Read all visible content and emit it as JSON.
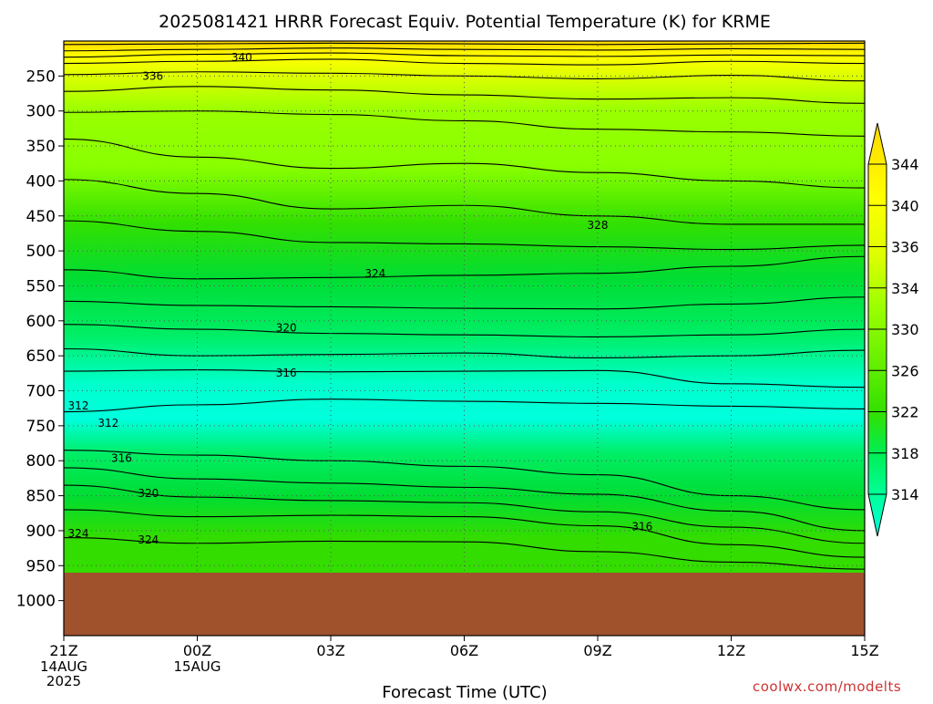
{
  "chart_data": {
    "type": "contour",
    "title": "2025081421 HRRR Forecast Equiv. Potential Temperature (K) for KRME",
    "xlabel": "Forecast Time (UTC)",
    "ylabel": "",
    "x_ticks": [
      {
        "label": "21Z",
        "sub": [
          "14AUG",
          "2025"
        ]
      },
      {
        "label": "00Z",
        "sub": [
          "15AUG"
        ]
      },
      {
        "label": "03Z",
        "sub": []
      },
      {
        "label": "06Z",
        "sub": []
      },
      {
        "label": "09Z",
        "sub": []
      },
      {
        "label": "12Z",
        "sub": []
      },
      {
        "label": "15Z",
        "sub": []
      }
    ],
    "y_ticks": [
      250,
      300,
      350,
      400,
      450,
      500,
      550,
      600,
      650,
      700,
      750,
      800,
      850,
      900,
      950,
      1000
    ],
    "ylim": [
      200,
      1050
    ],
    "surface_pressure": 960,
    "levels": [
      312,
      314,
      316,
      318,
      320,
      322,
      324,
      326,
      328,
      330,
      332,
      334,
      336,
      338,
      340,
      342,
      344
    ],
    "contours": [
      {
        "level": 344,
        "p": [
          205,
          204,
          203,
          204,
          205,
          204,
          203
        ]
      },
      {
        "level": 342,
        "p": [
          214,
          212,
          210,
          212,
          213,
          211,
          212
        ]
      },
      {
        "level": 340,
        "p": [
          223,
          219,
          217,
          221,
          222,
          220,
          221
        ]
      },
      {
        "level": 338,
        "p": [
          232,
          229,
          226,
          232,
          234,
          229,
          232
        ]
      },
      {
        "level": 336,
        "p": [
          248,
          244,
          246,
          250,
          254,
          249,
          257
        ]
      },
      {
        "level": 334,
        "p": [
          272,
          265,
          270,
          277,
          283,
          281,
          289
        ]
      },
      {
        "level": 332,
        "p": [
          302,
          300,
          305,
          314,
          326,
          330,
          336
        ]
      },
      {
        "level": 330,
        "p": [
          340,
          366,
          382,
          375,
          388,
          400,
          410
        ]
      },
      {
        "level": 328,
        "p": [
          398,
          418,
          440,
          435,
          450,
          462,
          462
        ]
      },
      {
        "level": 326,
        "p": [
          457,
          472,
          488,
          490,
          494,
          498,
          492
        ]
      },
      {
        "level": 324,
        "p": [
          527,
          540,
          538,
          535,
          532,
          522,
          508
        ]
      },
      {
        "level": 322,
        "p": [
          572,
          578,
          580,
          582,
          583,
          576,
          566
        ]
      },
      {
        "level": 320,
        "p": [
          605,
          612,
          618,
          620,
          623,
          620,
          612
        ]
      },
      {
        "level": 318,
        "p": [
          640,
          650,
          648,
          646,
          653,
          650,
          642
        ]
      },
      {
        "level": 316,
        "p": [
          672,
          670,
          673,
          672,
          671,
          690,
          695
        ]
      },
      {
        "level": 314,
        "p": [
          730,
          720,
          712,
          715,
          718,
          722,
          726
        ]
      },
      {
        "level": 316,
        "p": [
          785,
          792,
          800,
          808,
          820,
          850,
          870
        ]
      },
      {
        "level": 318,
        "p": [
          810,
          826,
          832,
          838,
          848,
          872,
          900
        ]
      },
      {
        "level": 320,
        "p": [
          835,
          852,
          857,
          860,
          873,
          895,
          918
        ]
      },
      {
        "level": 322,
        "p": [
          870,
          880,
          878,
          880,
          893,
          920,
          938
        ]
      },
      {
        "level": 324,
        "p": [
          910,
          918,
          915,
          916,
          930,
          945,
          955
        ]
      }
    ],
    "contour_labels": [
      {
        "text": "340",
        "x": 4.0,
        "p": 222
      },
      {
        "text": "336",
        "x": 2.0,
        "p": 249
      },
      {
        "text": "328",
        "x": 12.0,
        "p": 462
      },
      {
        "text": "324",
        "x": 7.0,
        "p": 531
      },
      {
        "text": "320",
        "x": 5.0,
        "p": 609
      },
      {
        "text": "316",
        "x": 5.0,
        "p": 673
      },
      {
        "text": "312",
        "x": 0.0,
        "p": 720
      },
      {
        "text": "312",
        "x": 1.0,
        "p": 745
      },
      {
        "text": "316",
        "x": 1.3,
        "p": 795
      },
      {
        "text": "320",
        "x": 1.9,
        "p": 845
      },
      {
        "text": "324",
        "x": 0.0,
        "p": 903
      },
      {
        "text": "324",
        "x": 1.9,
        "p": 912
      },
      {
        "text": "316",
        "x": 13.0,
        "p": 893
      }
    ],
    "colorbar": {
      "labels": [
        344,
        340,
        336,
        334,
        330,
        326,
        322,
        318,
        314
      ],
      "colors": [
        "#ffd700",
        "#ffff00",
        "#ddff00",
        "#99ff00",
        "#66f000",
        "#33e000",
        "#00ee55",
        "#00ff99",
        "#00ffdd"
      ]
    },
    "colors": {
      "ground": "#a0522d",
      "contour_line": "#000000",
      "grid": "#555555"
    }
  },
  "footer": {
    "credit": "coolwx.com/modelts"
  }
}
